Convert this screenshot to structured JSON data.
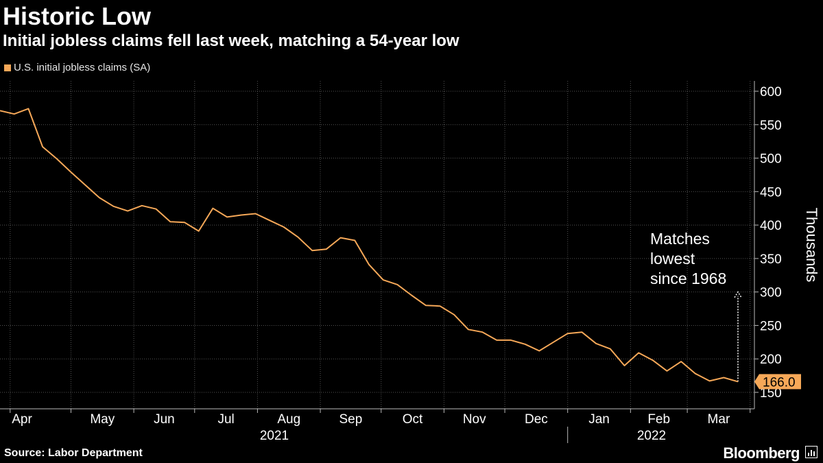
{
  "header": {
    "title": "Historic Low",
    "subtitle": "Initial jobless claims fell last week, matching a 54-year low"
  },
  "footer": {
    "source": "Source: Labor Department",
    "brand": "Bloomberg"
  },
  "colors": {
    "background": "#000000",
    "series": "#f6a858",
    "grid": "#555555",
    "text": "#ffffff"
  },
  "chart_data": {
    "type": "line",
    "legend": "U.S. initial jobless claims (SA)",
    "ylabel": "Thousands",
    "ylim": [
      150,
      600
    ],
    "yticks": [
      150,
      200,
      250,
      300,
      350,
      400,
      450,
      500,
      550,
      600
    ],
    "grid": true,
    "x_axis_months": [
      "Apr",
      "May",
      "Jun",
      "Jul",
      "Aug",
      "Sep",
      "Oct",
      "Nov",
      "Dec",
      "Jan",
      "Feb",
      "Mar"
    ],
    "x_axis_years": [
      "2021",
      "2022"
    ],
    "series": [
      {
        "name": "U.S. initial jobless claims (SA)",
        "x": [
          "2021-03-27",
          "2021-04-03",
          "2021-04-10",
          "2021-04-17",
          "2021-04-24",
          "2021-05-01",
          "2021-05-08",
          "2021-05-15",
          "2021-05-22",
          "2021-05-29",
          "2021-06-05",
          "2021-06-12",
          "2021-06-19",
          "2021-06-26",
          "2021-07-03",
          "2021-07-10",
          "2021-07-17",
          "2021-07-24",
          "2021-07-31",
          "2021-08-07",
          "2021-08-14",
          "2021-08-21",
          "2021-08-28",
          "2021-09-04",
          "2021-09-11",
          "2021-09-18",
          "2021-09-25",
          "2021-10-02",
          "2021-10-09",
          "2021-10-16",
          "2021-10-23",
          "2021-10-30",
          "2021-11-06",
          "2021-11-13",
          "2021-11-20",
          "2021-11-27",
          "2021-12-04",
          "2021-12-11",
          "2021-12-18",
          "2021-12-25",
          "2022-01-01",
          "2022-01-08",
          "2022-01-15",
          "2022-01-22",
          "2022-01-29",
          "2022-02-05",
          "2022-02-12",
          "2022-02-19",
          "2022-02-26",
          "2022-03-05",
          "2022-03-12",
          "2022-03-19",
          "2022-03-26"
        ],
        "values": [
          571,
          566,
          574,
          517,
          499,
          479,
          460,
          441,
          428,
          421,
          429,
          424,
          405,
          404,
          391,
          425,
          412,
          415,
          417,
          407,
          397,
          382,
          362,
          364,
          381,
          377,
          341,
          318,
          311,
          295,
          280,
          279,
          266,
          244,
          240,
          228,
          228,
          222,
          212,
          225,
          238,
          240,
          223,
          215,
          190,
          209,
          198,
          182,
          196,
          178,
          167,
          172,
          166
        ]
      }
    ],
    "last_value_label": "166.0",
    "annotation": {
      "lines": [
        "Matches",
        "lowest",
        "since 1968"
      ],
      "arrow_from": 166,
      "arrow_to": 300
    }
  }
}
